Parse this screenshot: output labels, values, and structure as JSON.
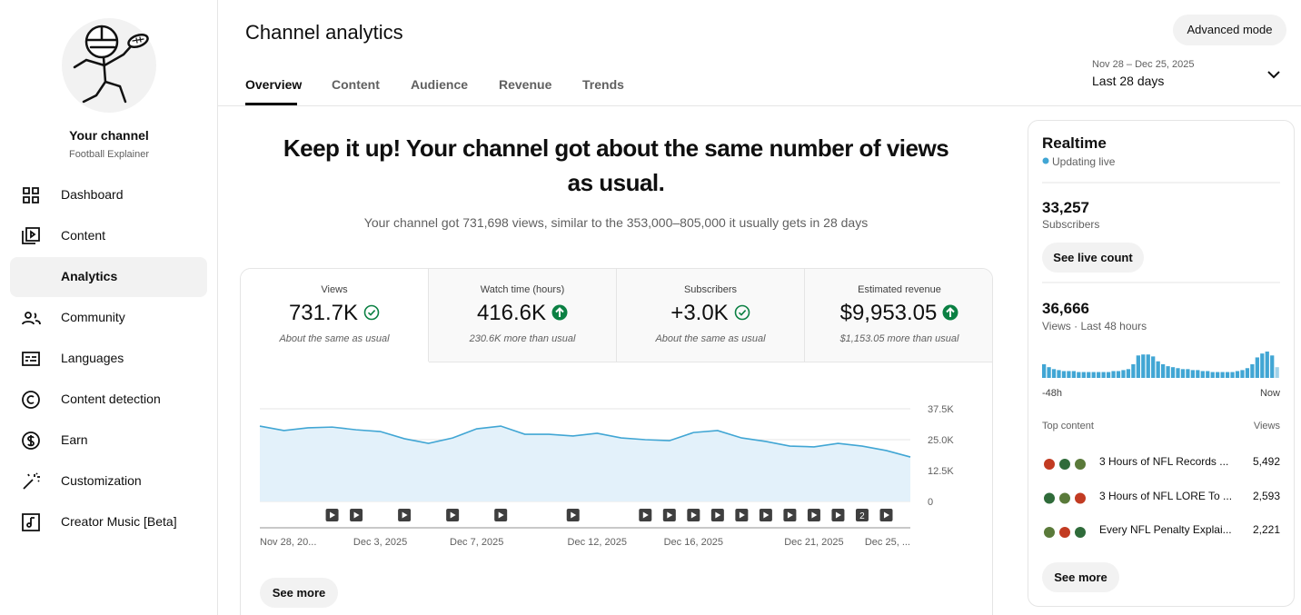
{
  "sidebar": {
    "channel_label": "Your channel",
    "channel_name": "Football Explainer",
    "nav": [
      "Dashboard",
      "Content",
      "Analytics",
      "Community",
      "Languages",
      "Content detection",
      "Earn",
      "Customization",
      "Creator Music [Beta]"
    ]
  },
  "header": {
    "title": "Channel analytics",
    "tabs": [
      "Overview",
      "Content",
      "Audience",
      "Revenue",
      "Trends"
    ],
    "advanced_mode": "Advanced mode",
    "date_range": "Nov 28 – Dec 25, 2025",
    "period": "Last 28 days"
  },
  "summary": {
    "headline": "Keep it up! Your channel got about the same number of views as usual.",
    "detail": "Your channel got 731,698 views, similar to the 353,000–805,000 it usually gets in 28 days"
  },
  "metrics": [
    {
      "label": "Views",
      "value": "731.7K",
      "note": "About the same as usual",
      "status": "same"
    },
    {
      "label": "Watch time (hours)",
      "value": "416.6K",
      "note": "230.6K more than usual",
      "status": "above"
    },
    {
      "label": "Subscribers",
      "value": "+3.0K",
      "note": "About the same as usual",
      "status": "same"
    },
    {
      "label": "Estimated revenue",
      "value": "$9,953.05",
      "note": "$1,153.05 more than usual",
      "status": "above"
    }
  ],
  "chart_data": [
    {
      "type": "area",
      "categories": [
        "Nov 28, 20...",
        null,
        null,
        null,
        null,
        "Dec 3, 2025",
        null,
        null,
        null,
        "Dec 7, 2025",
        null,
        null,
        null,
        null,
        "Dec 12, 2025",
        null,
        null,
        null,
        "Dec 16, 2025",
        null,
        null,
        null,
        null,
        "Dec 21, 2025",
        null,
        null,
        null,
        "Dec 25, ..."
      ],
      "values": [
        30500,
        28700,
        29800,
        30100,
        29000,
        28300,
        25400,
        23500,
        25700,
        29400,
        30500,
        27200,
        27200,
        26500,
        27600,
        25700,
        25000,
        24600,
        27900,
        28700,
        25700,
        24300,
        22400,
        22100,
        23500,
        22400,
        20600,
        18000
      ],
      "color": "#41a6d4",
      "fill_color": "#e3f1fa",
      "ylim": [
        0,
        37500
      ],
      "yticks": [
        0,
        {
          "value": 12500,
          "label": "12.5K"
        },
        {
          "value": 25000,
          "label": "25.0K"
        },
        {
          "value": 37500,
          "label": "37.5K"
        }
      ],
      "grid": true,
      "upload_counts": [
        null,
        null,
        null,
        1,
        1,
        null,
        1,
        null,
        1,
        null,
        1,
        null,
        null,
        1,
        null,
        null,
        1,
        1,
        1,
        1,
        1,
        1,
        1,
        1,
        1,
        2,
        1,
        null
      ]
    },
    {
      "type": "bar",
      "categories": [
        "-48h",
        null,
        null,
        null,
        null,
        null,
        null,
        null,
        null,
        null,
        null,
        null,
        null,
        null,
        null,
        null,
        null,
        null,
        null,
        null,
        null,
        null,
        null,
        null,
        null,
        null,
        null,
        null,
        null,
        null,
        null,
        null,
        null,
        null,
        null,
        null,
        null,
        null,
        null,
        null,
        null,
        null,
        null,
        null,
        null,
        null,
        null,
        "Now"
      ],
      "values": [
        966,
        759,
        621,
        552,
        483,
        483,
        483,
        414,
        414,
        414,
        414,
        414,
        414,
        414,
        483,
        483,
        552,
        621,
        966,
        1587,
        1656,
        1656,
        1518,
        1173,
        966,
        828,
        759,
        690,
        621,
        621,
        552,
        552,
        483,
        483,
        414,
        414,
        414,
        414,
        414,
        483,
        552,
        690,
        966,
        1449,
        1725,
        1863,
        1587,
        759
      ],
      "color": "#41a6d4"
    }
  ],
  "see_more": "See more",
  "realtime": {
    "title": "Realtime",
    "status": "Updating live",
    "subscribers": "33,257",
    "subscribers_label": "Subscribers",
    "live_count_button": "See live count",
    "views": "36,666",
    "views_label": "Views · Last 48 hours",
    "top_content_label": "Top content",
    "views_column_label": "Views",
    "top_content": [
      {
        "title": "3 Hours of NFL Records ...",
        "views": "5,492"
      },
      {
        "title": "3 Hours of NFL LORE To ...",
        "views": "2,593"
      },
      {
        "title": "Every NFL Penalty Explai...",
        "views": "2,221"
      }
    ],
    "see_more": "See more"
  }
}
